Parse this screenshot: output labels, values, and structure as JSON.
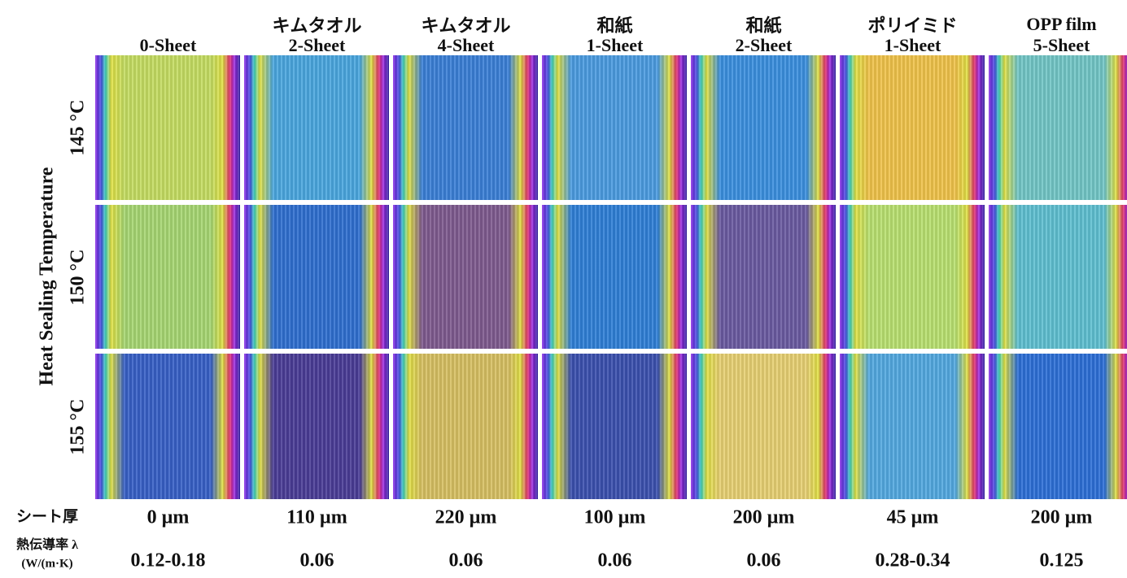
{
  "axis_label": "Heat Sealing Temperature",
  "columns": [
    {
      "sheets": "0-Sheet"
    },
    {
      "name": "キムタオル",
      "sheets": "2-Sheet"
    },
    {
      "name": "キムタオル",
      "sheets": "4-Sheet"
    },
    {
      "name": "和紙",
      "sheets": "1-Sheet"
    },
    {
      "name": "和紙",
      "sheets": "2-Sheet"
    },
    {
      "name": "ポリイミド",
      "sheets": "1-Sheet"
    },
    {
      "name": "OPP film",
      "sheets": "5-Sheet"
    }
  ],
  "rows": [
    "145 °C",
    "150 °C",
    "155 °C"
  ],
  "thickness": {
    "label": "シート厚",
    "values": [
      "0 µm",
      "110 µm",
      "220 µm",
      "100 µm",
      "200 µm",
      "45 µm",
      "200 µm"
    ]
  },
  "conductivity": {
    "label": "熱伝導率 λ",
    "unit": "(W/(m·K)",
    "values": [
      "0.12-0.18",
      "0.06",
      "0.06",
      "0.06",
      "0.06",
      "0.28-0.34",
      "0.125"
    ]
  }
}
